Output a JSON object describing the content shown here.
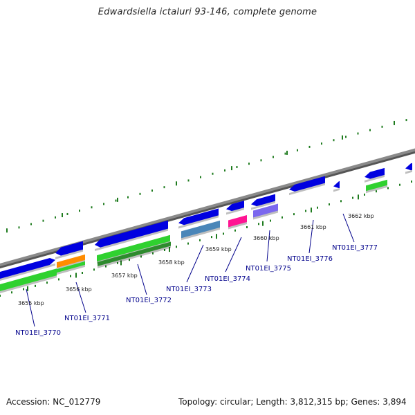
{
  "title": "Edwardsiella ictaluri 93-146, complete genome",
  "footer": {
    "accession": "Accession: NC_012779",
    "topology": "Topology: circular; Length: 3,812,315 bp; Genes: 3,894"
  },
  "colors": {
    "backbone": "#8a8a8a",
    "gene_blue": "#0000e0",
    "gene_green": "#2fd12f",
    "gene_orange": "#ff8c00",
    "gene_steelblue": "#4a86b8",
    "gene_pink": "#ff1493",
    "gene_purple": "#7b68ee",
    "tick_green": "#1e7b1e",
    "label_blue": "#00008b"
  },
  "kbp_labels": [
    "3655 kbp",
    "3656 kbp",
    "3657 kbp",
    "3658 kbp",
    "3659 kbp",
    "3660 kbp",
    "3661 kbp",
    "3662 kbp"
  ],
  "gene_labels": [
    "NT01EI_3770",
    "NT01EI_3771",
    "NT01EI_3772",
    "NT01EI_3773",
    "NT01EI_3774",
    "NT01EI_3775",
    "NT01EI_3776",
    "NT01EI_3777"
  ]
}
